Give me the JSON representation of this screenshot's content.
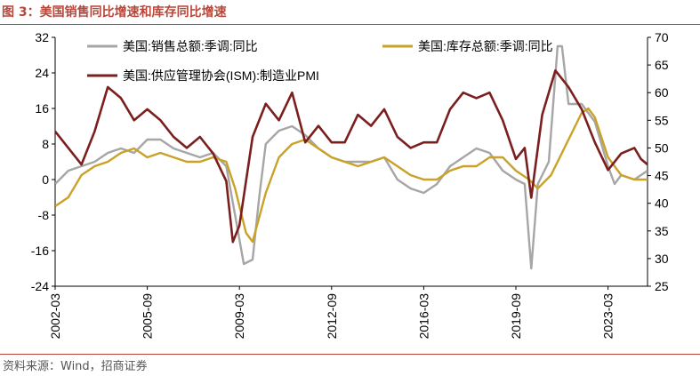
{
  "figure": {
    "title": "图 3：美国销售同比增速和库存同比增速",
    "source": "资料来源：Wind，招商证券"
  },
  "colors": {
    "title": "#b5473b",
    "sales": "#a6a6a6",
    "inventory": "#c9a227",
    "pmi": "#7b1e1e"
  },
  "chart_data": {
    "type": "line",
    "title": "",
    "xlabel": "",
    "ylabel": "",
    "x_ticks": [
      "2002-03",
      "2005-09",
      "2009-03",
      "2012-09",
      "2016-03",
      "2019-09",
      "2023-03"
    ],
    "x_range": [
      "2002-03",
      "2024-09"
    ],
    "y_left": {
      "range": [
        -24,
        32
      ],
      "ticks": [
        32,
        24,
        16,
        8,
        0,
        -8,
        -16,
        -24
      ]
    },
    "y_right": {
      "range": [
        25,
        70
      ],
      "ticks": [
        70,
        65,
        60,
        55,
        50,
        45,
        40,
        35,
        30,
        25
      ]
    },
    "grid": false,
    "legend": "top",
    "series": [
      {
        "name": "美国:销售总额:季调:同比",
        "axis": "left",
        "points": [
          [
            "2002-03",
            -1
          ],
          [
            "2002-09",
            2
          ],
          [
            "2003-03",
            3
          ],
          [
            "2003-09",
            4
          ],
          [
            "2004-03",
            6
          ],
          [
            "2004-09",
            7
          ],
          [
            "2005-03",
            6
          ],
          [
            "2005-09",
            9
          ],
          [
            "2006-03",
            9
          ],
          [
            "2006-09",
            7
          ],
          [
            "2007-03",
            6
          ],
          [
            "2007-09",
            5
          ],
          [
            "2008-03",
            6
          ],
          [
            "2008-09",
            3
          ],
          [
            "2009-01",
            -8
          ],
          [
            "2009-05",
            -19
          ],
          [
            "2009-09",
            -18
          ],
          [
            "2009-12",
            -4
          ],
          [
            "2010-03",
            8
          ],
          [
            "2010-09",
            11
          ],
          [
            "2011-03",
            12
          ],
          [
            "2011-09",
            10
          ],
          [
            "2012-03",
            7
          ],
          [
            "2012-09",
            5
          ],
          [
            "2013-03",
            4
          ],
          [
            "2013-09",
            4
          ],
          [
            "2014-03",
            4
          ],
          [
            "2014-09",
            5
          ],
          [
            "2015-03",
            0
          ],
          [
            "2015-09",
            -2
          ],
          [
            "2016-03",
            -3
          ],
          [
            "2016-09",
            -1
          ],
          [
            "2017-03",
            3
          ],
          [
            "2017-09",
            5
          ],
          [
            "2018-03",
            7
          ],
          [
            "2018-09",
            6
          ],
          [
            "2019-03",
            2
          ],
          [
            "2019-09",
            0
          ],
          [
            "2020-01",
            -1
          ],
          [
            "2020-04",
            -20
          ],
          [
            "2020-07",
            -1
          ],
          [
            "2020-12",
            4
          ],
          [
            "2021-04",
            30
          ],
          [
            "2021-06",
            30
          ],
          [
            "2021-09",
            17
          ],
          [
            "2022-03",
            17
          ],
          [
            "2022-09",
            13
          ],
          [
            "2023-03",
            3
          ],
          [
            "2023-06",
            -1
          ],
          [
            "2023-09",
            1
          ],
          [
            "2024-03",
            0
          ],
          [
            "2024-09",
            2
          ]
        ]
      },
      {
        "name": "美国:库存总额:季调:同比",
        "axis": "left",
        "points": [
          [
            "2002-03",
            -6
          ],
          [
            "2002-09",
            -4
          ],
          [
            "2003-03",
            1
          ],
          [
            "2003-09",
            3
          ],
          [
            "2004-03",
            4
          ],
          [
            "2004-09",
            6
          ],
          [
            "2005-03",
            7
          ],
          [
            "2005-09",
            5
          ],
          [
            "2006-03",
            6
          ],
          [
            "2006-09",
            5
          ],
          [
            "2007-03",
            4
          ],
          [
            "2007-09",
            4
          ],
          [
            "2008-03",
            5
          ],
          [
            "2008-09",
            4
          ],
          [
            "2009-01",
            -2
          ],
          [
            "2009-06",
            -12
          ],
          [
            "2009-09",
            -14
          ],
          [
            "2010-03",
            -3
          ],
          [
            "2010-09",
            5
          ],
          [
            "2011-03",
            8
          ],
          [
            "2011-09",
            9
          ],
          [
            "2012-03",
            7
          ],
          [
            "2012-09",
            5
          ],
          [
            "2013-03",
            4
          ],
          [
            "2013-09",
            3
          ],
          [
            "2014-03",
            4
          ],
          [
            "2014-09",
            5
          ],
          [
            "2015-03",
            3
          ],
          [
            "2015-09",
            1
          ],
          [
            "2016-03",
            0
          ],
          [
            "2016-09",
            0
          ],
          [
            "2017-03",
            2
          ],
          [
            "2017-09",
            3
          ],
          [
            "2018-03",
            3
          ],
          [
            "2018-09",
            5
          ],
          [
            "2019-03",
            5
          ],
          [
            "2019-09",
            2
          ],
          [
            "2020-03",
            0
          ],
          [
            "2020-07",
            -2
          ],
          [
            "2021-01",
            1
          ],
          [
            "2021-09",
            9
          ],
          [
            "2022-03",
            15
          ],
          [
            "2022-06",
            16
          ],
          [
            "2022-09",
            14
          ],
          [
            "2023-03",
            5
          ],
          [
            "2023-09",
            1
          ],
          [
            "2024-03",
            0
          ],
          [
            "2024-09",
            0
          ]
        ]
      },
      {
        "name": "美国:供应管理协会(ISM):制造业PMI",
        "axis": "right",
        "points": [
          [
            "2002-03",
            53
          ],
          [
            "2002-09",
            50
          ],
          [
            "2003-03",
            47
          ],
          [
            "2003-09",
            53
          ],
          [
            "2004-03",
            61
          ],
          [
            "2004-09",
            59
          ],
          [
            "2005-03",
            55
          ],
          [
            "2005-09",
            57
          ],
          [
            "2006-03",
            55
          ],
          [
            "2006-09",
            52
          ],
          [
            "2007-03",
            50
          ],
          [
            "2007-09",
            52
          ],
          [
            "2008-03",
            49
          ],
          [
            "2008-09",
            44
          ],
          [
            "2008-12",
            33
          ],
          [
            "2009-03",
            36
          ],
          [
            "2009-09",
            52
          ],
          [
            "2010-03",
            58
          ],
          [
            "2010-09",
            55
          ],
          [
            "2011-03",
            60
          ],
          [
            "2011-09",
            51
          ],
          [
            "2012-03",
            54
          ],
          [
            "2012-09",
            51
          ],
          [
            "2013-03",
            51
          ],
          [
            "2013-09",
            56
          ],
          [
            "2014-03",
            54
          ],
          [
            "2014-09",
            57
          ],
          [
            "2015-03",
            52
          ],
          [
            "2015-09",
            50
          ],
          [
            "2016-03",
            51
          ],
          [
            "2016-09",
            51
          ],
          [
            "2017-03",
            57
          ],
          [
            "2017-09",
            60
          ],
          [
            "2018-03",
            59
          ],
          [
            "2018-09",
            60
          ],
          [
            "2019-03",
            55
          ],
          [
            "2019-09",
            48
          ],
          [
            "2020-01",
            50
          ],
          [
            "2020-04",
            41
          ],
          [
            "2020-09",
            56
          ],
          [
            "2021-03",
            64
          ],
          [
            "2021-09",
            61
          ],
          [
            "2022-03",
            57
          ],
          [
            "2022-09",
            51
          ],
          [
            "2023-03",
            46
          ],
          [
            "2023-09",
            49
          ],
          [
            "2024-03",
            50
          ],
          [
            "2024-06",
            48
          ],
          [
            "2024-09",
            47
          ]
        ]
      }
    ]
  }
}
